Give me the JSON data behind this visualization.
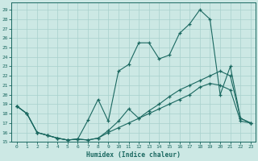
{
  "bg_color": "#cce8e4",
  "grid_color": "#a8d0cc",
  "line_color": "#1a6860",
  "x_label": "Humidex (Indice chaleur)",
  "x_ticks": [
    0,
    1,
    2,
    3,
    4,
    5,
    6,
    7,
    8,
    9,
    10,
    11,
    12,
    13,
    14,
    15,
    16,
    17,
    18,
    19,
    20,
    21,
    22,
    23
  ],
  "ylim": [
    15.0,
    29.8
  ],
  "xlim": [
    -0.5,
    23.5
  ],
  "yticks": [
    15,
    16,
    17,
    18,
    19,
    20,
    21,
    22,
    23,
    24,
    25,
    26,
    27,
    28,
    29
  ],
  "series1_x": [
    0,
    1,
    2,
    3,
    4,
    5,
    6,
    7,
    8,
    9,
    10,
    11,
    12,
    13,
    14,
    15,
    16,
    17,
    18,
    19,
    20,
    21,
    22,
    23
  ],
  "series1_y": [
    18.8,
    18.0,
    16.0,
    15.7,
    15.4,
    15.2,
    15.3,
    15.2,
    15.4,
    16.2,
    17.2,
    18.5,
    17.5,
    18.3,
    19.0,
    19.8,
    20.5,
    21.0,
    21.5,
    22.0,
    22.5,
    22.0,
    17.5,
    17.0
  ],
  "series2_x": [
    0,
    1,
    2,
    3,
    4,
    5,
    6,
    7,
    8,
    9,
    10,
    11,
    12,
    13,
    14,
    15,
    16,
    17,
    18,
    19,
    20,
    21,
    22,
    23
  ],
  "series2_y": [
    18.8,
    18.0,
    16.0,
    15.7,
    15.4,
    15.2,
    15.3,
    17.3,
    19.5,
    17.2,
    22.5,
    23.2,
    25.5,
    25.5,
    23.8,
    24.2,
    26.5,
    27.5,
    29.0,
    28.0,
    20.0,
    23.0,
    17.5,
    17.0
  ],
  "series3_x": [
    0,
    1,
    2,
    3,
    4,
    5,
    6,
    7,
    8,
    9,
    10,
    11,
    12,
    13,
    14,
    15,
    16,
    17,
    18,
    19,
    20,
    21,
    22,
    23
  ],
  "series3_y": [
    18.8,
    18.0,
    16.0,
    15.7,
    15.4,
    15.2,
    15.3,
    15.2,
    15.4,
    16.0,
    16.5,
    17.0,
    17.5,
    18.0,
    18.5,
    19.0,
    19.5,
    20.0,
    20.8,
    21.2,
    21.0,
    20.5,
    17.2,
    17.0
  ]
}
